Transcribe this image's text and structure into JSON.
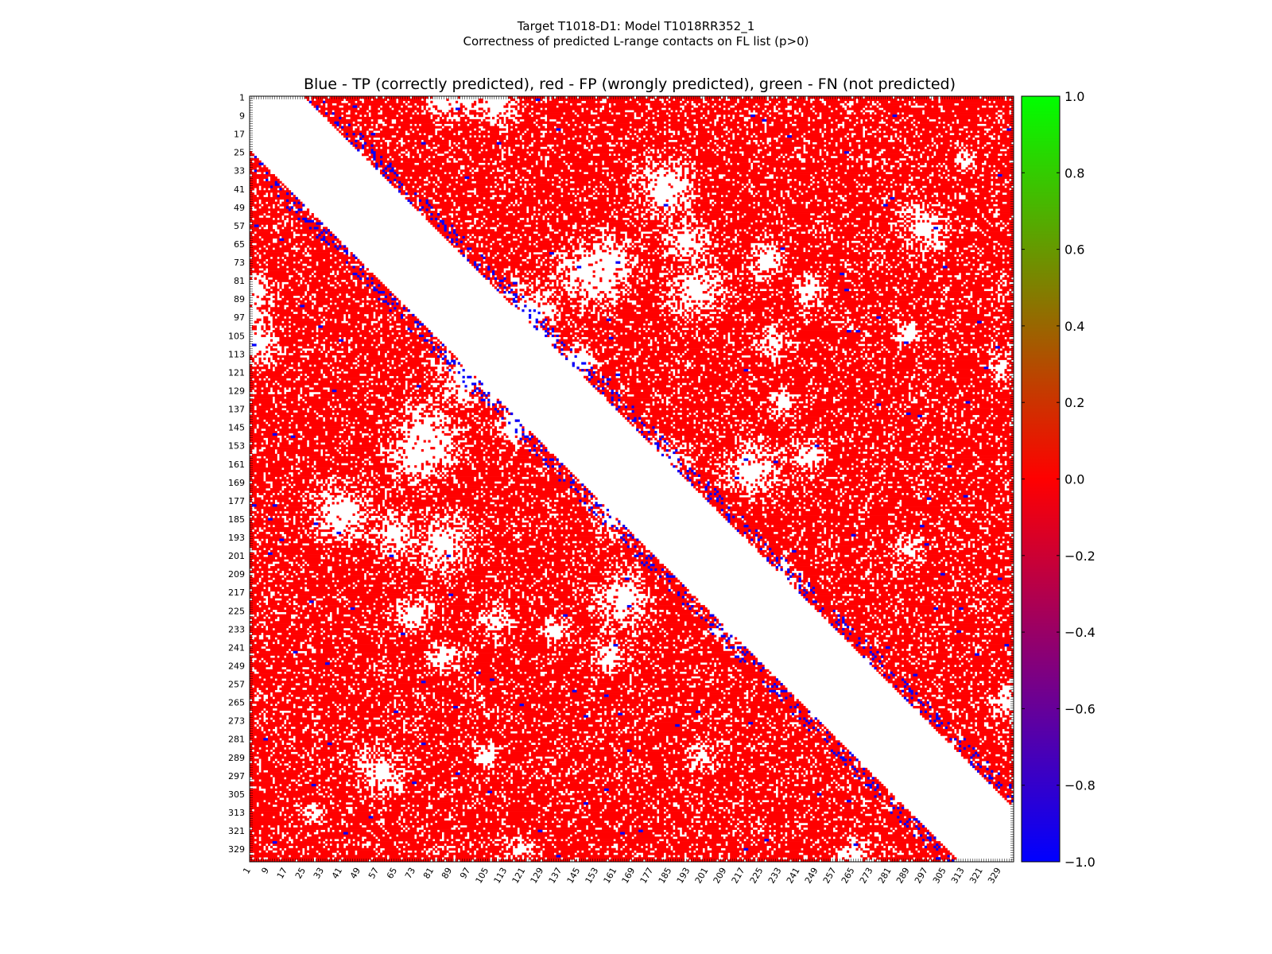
{
  "figure": {
    "suptitle_line1": "Target T1018-D1: Model T1018RR352_1",
    "suptitle_line2": "Correctness of predicted L-range contacts on FL list (p>0)"
  },
  "chart_data": {
    "type": "heatmap",
    "title": "Blue - TP (correctly predicted), red - FP (wrongly predicted), green - FN (not predicted)",
    "n_residues": 334,
    "x_tick_labels": [
      "1",
      "9",
      "17",
      "25",
      "33",
      "41",
      "49",
      "57",
      "65",
      "73",
      "81",
      "89",
      "97",
      "105",
      "113",
      "121",
      "129",
      "137",
      "145",
      "153",
      "161",
      "169",
      "177",
      "185",
      "193",
      "201",
      "209",
      "217",
      "225",
      "233",
      "241",
      "249",
      "257",
      "265",
      "273",
      "281",
      "289",
      "297",
      "305",
      "313",
      "321",
      "329"
    ],
    "y_tick_labels": [
      "1",
      "9",
      "17",
      "25",
      "33",
      "41",
      "49",
      "57",
      "65",
      "73",
      "81",
      "89",
      "97",
      "105",
      "113",
      "121",
      "129",
      "137",
      "145",
      "153",
      "161",
      "169",
      "177",
      "185",
      "193",
      "201",
      "209",
      "217",
      "225",
      "233",
      "241",
      "249",
      "257",
      "265",
      "273",
      "281",
      "289",
      "297",
      "305",
      "313",
      "321",
      "329"
    ],
    "min_sequence_separation": 24,
    "legend": {
      "TP": {
        "label": "correctly predicted",
        "color": "#0000ff",
        "value": -1.0
      },
      "FP": {
        "label": "wrongly predicted",
        "color": "#ff0000",
        "value": 0.0
      },
      "FN": {
        "label": "not predicted",
        "color": "#00ff00",
        "value": 1.0
      }
    },
    "colorbar": {
      "range": [
        -1.0,
        1.0
      ],
      "ticks": [
        "1.0",
        "0.8",
        "0.6",
        "0.4",
        "0.2",
        "0.0",
        "−0.2",
        "−0.4",
        "−0.6",
        "−0.8",
        "−1.0"
      ],
      "colors": [
        "#0000ff",
        "#ff0000",
        "#00ff00"
      ]
    },
    "tp_diagonal_bands_offsets": [
      24,
      27,
      30
    ],
    "grid": false
  }
}
